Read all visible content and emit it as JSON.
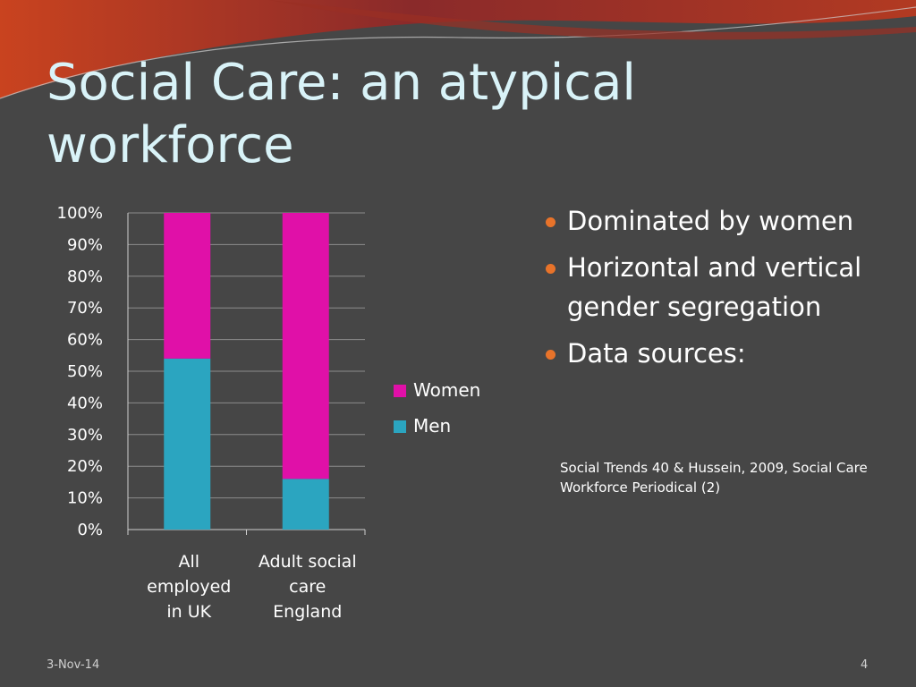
{
  "slide": {
    "title_line1": "Social Care: an atypical",
    "title_line2": "workforce",
    "bullets": [
      "Dominated by women",
      "Horizontal and vertical gender segregation",
      "Data sources:"
    ],
    "source_text": "Social Trends 40 & Hussein, 2009, Social Care Workforce Periodical  (2)",
    "footer_date": "3-Nov-14",
    "footer_page": "4",
    "colors": {
      "background": "#464646",
      "title": "#d9f3f8",
      "bullet_dot": "#e8732a",
      "swoosh_dark": "#8a2a2a",
      "swoosh_orange": "#c9431f"
    }
  },
  "chart_data": {
    "type": "bar",
    "stacked": true,
    "categories": [
      [
        "All",
        "employed",
        "in UK"
      ],
      [
        "Adult social",
        "care",
        "England"
      ]
    ],
    "series": [
      {
        "name": "Men",
        "color": "#2ba5c0",
        "values": [
          54,
          16
        ]
      },
      {
        "name": "Women",
        "color": "#e010a8",
        "values": [
          46,
          84
        ]
      }
    ],
    "ylim": [
      0,
      100
    ],
    "yticks": [
      "0%",
      "10%",
      "20%",
      "30%",
      "40%",
      "50%",
      "60%",
      "70%",
      "80%",
      "90%",
      "100%"
    ],
    "grid": true,
    "legend": [
      "Women",
      "Men"
    ],
    "legend_placement": "right"
  }
}
